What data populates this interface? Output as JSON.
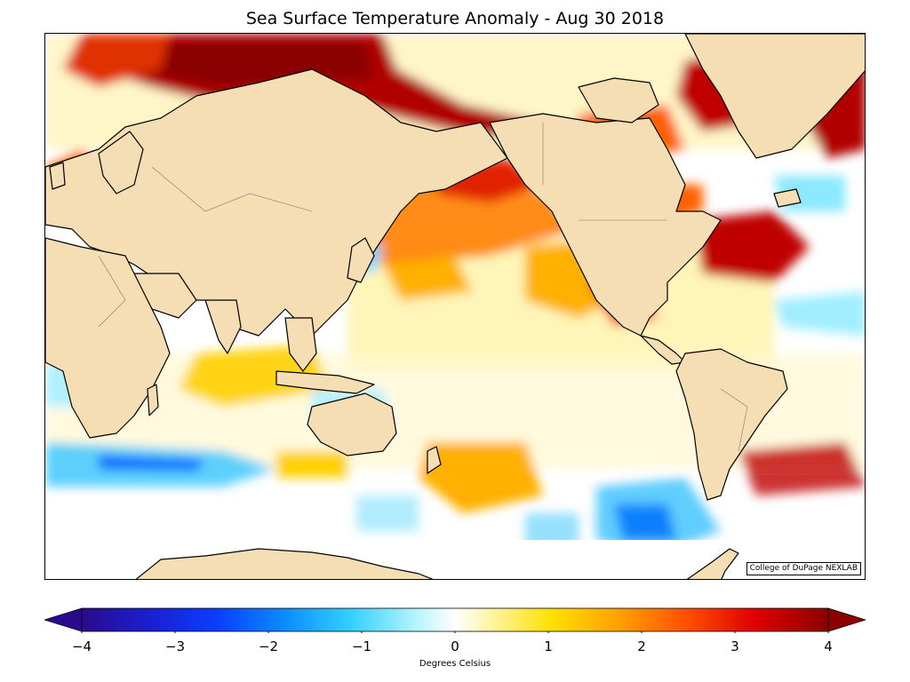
{
  "title": "Sea Surface Temperature Anomaly - Aug 30 2018",
  "credit": "College of DuPage NEXLAB",
  "colorbar": {
    "label": "Degrees Celsius",
    "ticks": [
      "−4",
      "−3",
      "−2",
      "−1",
      "0",
      "1",
      "2",
      "3",
      "4"
    ],
    "range": [
      -4,
      4
    ],
    "extend": "both",
    "colors": [
      "#2a0a8c",
      "#0b3cff",
      "#0a8cff",
      "#32d0ff",
      "#b8f5ff",
      "#ffffff",
      "#fff3a0",
      "#ffe000",
      "#ffa000",
      "#ff5000",
      "#e00000",
      "#8b0000"
    ]
  },
  "map": {
    "land_color": "#f5deb3",
    "coast_color": "#000000",
    "ocean_color": "#ffffff"
  }
}
